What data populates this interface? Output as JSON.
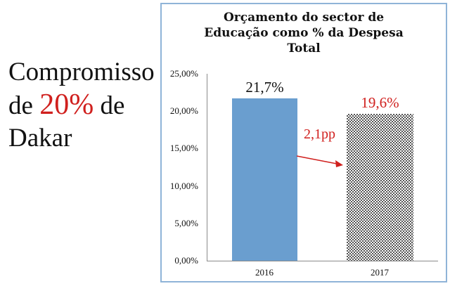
{
  "side_text": {
    "line1": "Compromisso",
    "line2_pre": "de ",
    "line2_highlight": "20%",
    "line2_post": " de",
    "line3": "Dakar",
    "highlight_color": "#d0201e"
  },
  "chart": {
    "title_lines": [
      "Orçamento do sector de",
      "Educação como % da Despesa",
      "Total"
    ],
    "y_ticks": [
      "25,00%",
      "20,00%",
      "15,00%",
      "10,00%",
      "5,00%",
      "0,00%"
    ],
    "bars": [
      {
        "label": "2016",
        "value_label": "21,7%",
        "value_color": "#111111"
      },
      {
        "label": "2017",
        "value_label": "19,6%",
        "value_color": "#d0201e"
      }
    ],
    "annotation": "2,1pp"
  },
  "chart_data": {
    "type": "bar",
    "title": "Orçamento do sector de Educação como % da Despesa Total",
    "categories": [
      "2016",
      "2017"
    ],
    "values": [
      21.7,
      19.6
    ],
    "value_labels": [
      "21,7%",
      "19,6%"
    ],
    "xlabel": "",
    "ylabel": "",
    "ylim": [
      0,
      25
    ],
    "y_tick_labels": [
      "0,00%",
      "5,00%",
      "10,00%",
      "15,00%",
      "20,00%",
      "25,00%"
    ],
    "annotations": [
      {
        "text": "2,1pp",
        "type": "arrow",
        "from": "2016",
        "to": "2017",
        "color": "#d0201e"
      }
    ],
    "bar_styles": [
      {
        "fill": "#6a9ecf"
      },
      {
        "fill": "checkered-pattern",
        "color": "#555555"
      }
    ],
    "grid": false,
    "legend": "none"
  }
}
